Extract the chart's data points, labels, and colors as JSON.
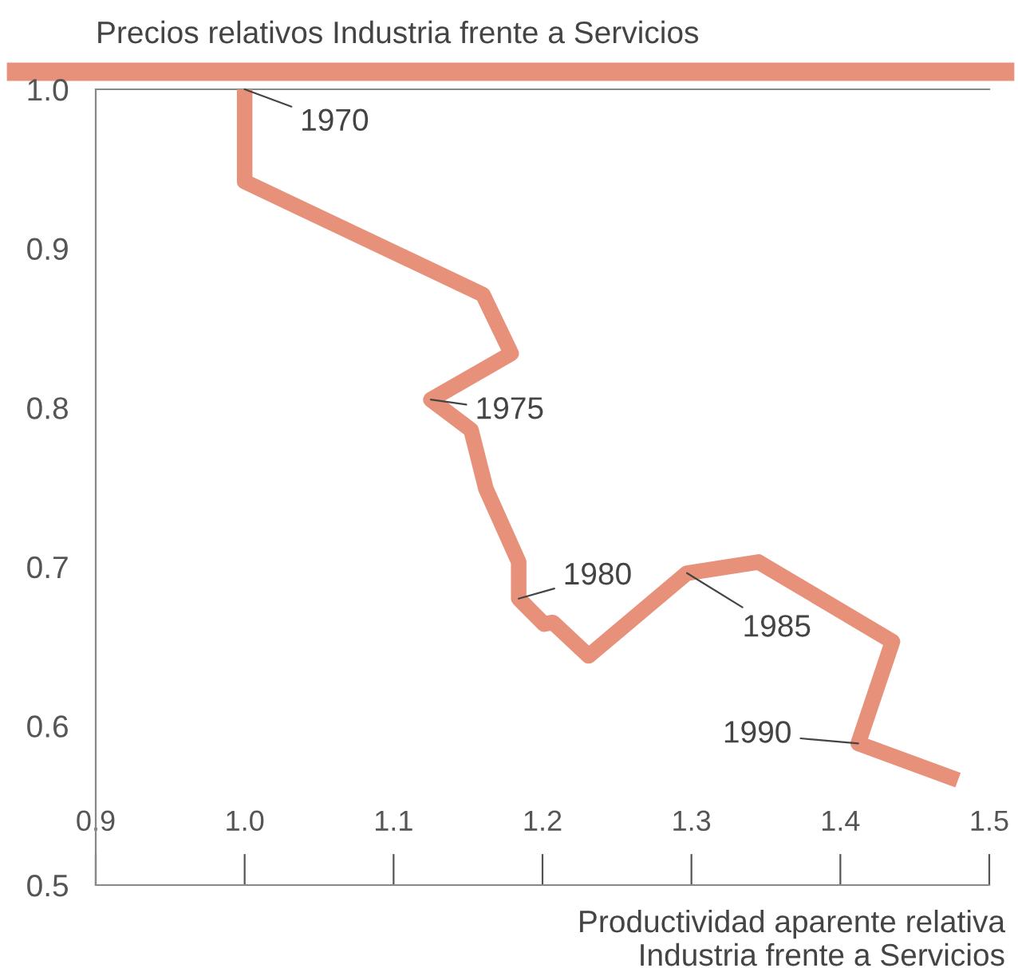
{
  "chart_data": {
    "type": "line",
    "ylabel": "Precios relativos Industria frente a Servicios",
    "xlabel": "Productividad aparente relativa\nIndustria frente a Servicios",
    "x": [
      1.0,
      1.0,
      1.16,
      1.179,
      1.125,
      1.152,
      1.162,
      1.184,
      1.184,
      1.201,
      1.207,
      1.231,
      1.297,
      1.345,
      1.435,
      1.412,
      1.479
    ],
    "series": [
      {
        "color": "#e8917a",
        "values": [
          1.0,
          0.942,
          0.871,
          0.834,
          0.805,
          0.786,
          0.749,
          0.703,
          0.68,
          0.664,
          0.665,
          0.644,
          0.696,
          0.703,
          0.653,
          0.589,
          0.566
        ]
      }
    ],
    "xlim": [
      0.9,
      1.5
    ],
    "ylim": [
      0.5,
      1.0
    ],
    "xticks": [
      0.9,
      {
        "value": 1.0,
        "label": "1.0"
      },
      1.1,
      1.2,
      1.3,
      1.4,
      1.5
    ],
    "yticks": [
      0.5,
      0.6,
      0.7,
      0.8,
      0.9,
      {
        "value": 1.0,
        "label": "1.0"
      }
    ],
    "grid": false,
    "legend": false,
    "marker": "none",
    "line_style": "solid",
    "annotations": [
      {
        "text": "1970",
        "x": 1.0,
        "y": 1.0
      },
      {
        "text": "1975",
        "x": 1.125,
        "y": 0.805
      },
      {
        "text": "1980",
        "x": 1.184,
        "y": 0.68
      },
      {
        "text": "1985",
        "x": 1.297,
        "y": 0.696
      },
      {
        "text": "1990",
        "x": 1.412,
        "y": 0.589
      }
    ]
  }
}
